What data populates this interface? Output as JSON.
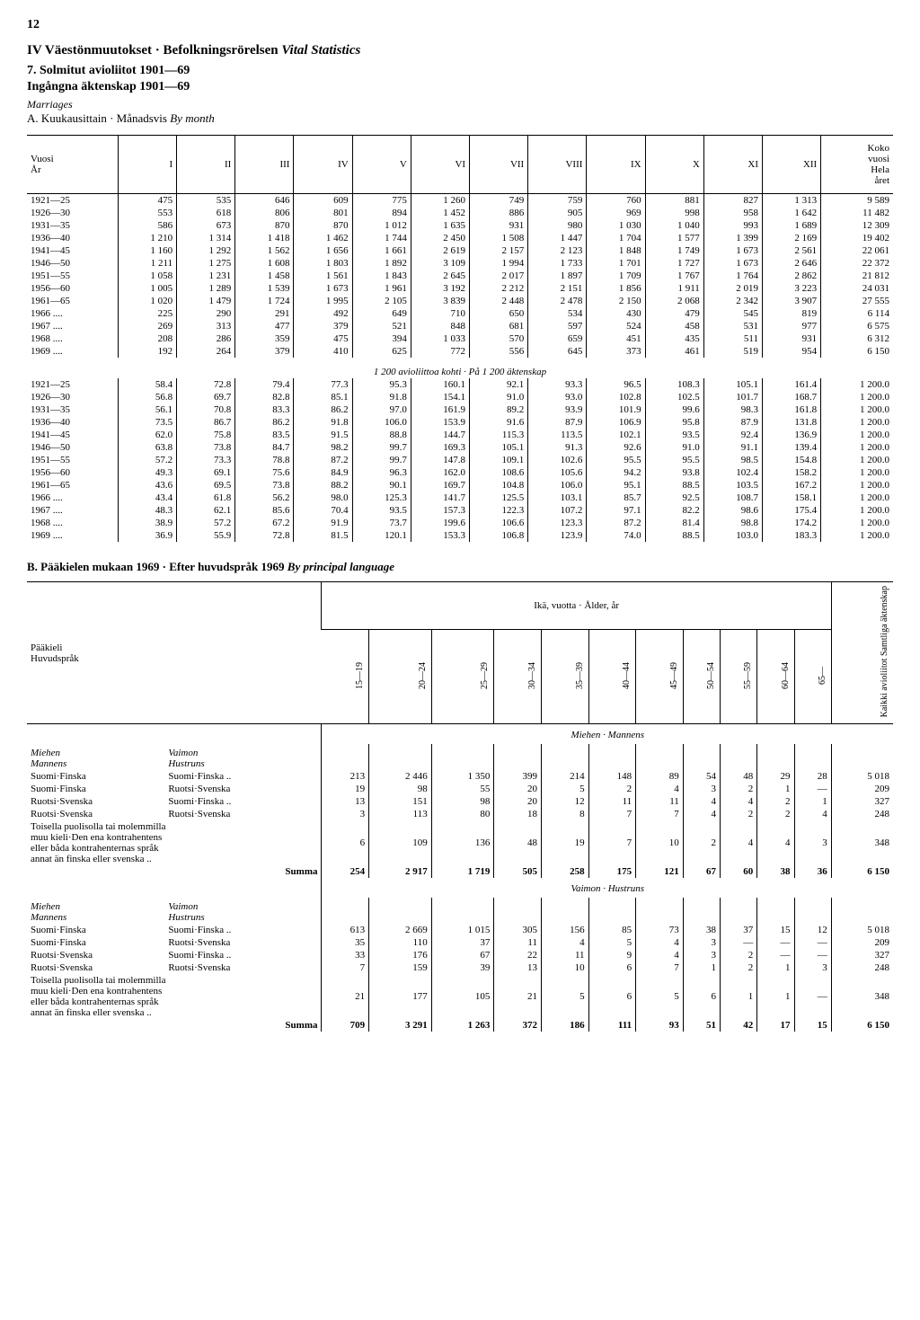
{
  "page_number": "12",
  "heading": "IV Väestönmuutokset · Befolkningsrörelsen",
  "heading_italic": "Vital Statistics",
  "subheading1": "7. Solmitut avioliitot 1901—69",
  "subheading2": "Ingångna äktenskap 1901—69",
  "sub_italic": "Marriages",
  "note_a": "A. Kuukausittain · Månadsvis",
  "note_a_italic": "By month",
  "tableA": {
    "head": {
      "year": "Vuosi\nÅr",
      "cols": [
        "I",
        "II",
        "III",
        "IV",
        "V",
        "VI",
        "VII",
        "VIII",
        "IX",
        "X",
        "XI",
        "XII"
      ],
      "total": "Koko\nvuosi\nHela\nåret"
    },
    "rows_abs": [
      [
        "1921—25",
        "475",
        "535",
        "646",
        "609",
        "775",
        "1 260",
        "749",
        "759",
        "760",
        "881",
        "827",
        "1 313",
        "9 589"
      ],
      [
        "1926—30",
        "553",
        "618",
        "806",
        "801",
        "894",
        "1 452",
        "886",
        "905",
        "969",
        "998",
        "958",
        "1 642",
        "11 482"
      ],
      [
        "1931—35",
        "586",
        "673",
        "870",
        "870",
        "1 012",
        "1 635",
        "931",
        "980",
        "1 030",
        "1 040",
        "993",
        "1 689",
        "12 309"
      ],
      [
        "1936—40",
        "1 210",
        "1 314",
        "1 418",
        "1 462",
        "1 744",
        "2 450",
        "1 508",
        "1 447",
        "1 704",
        "1 577",
        "1 399",
        "2 169",
        "19 402"
      ],
      [
        "1941—45",
        "1 160",
        "1 292",
        "1 562",
        "1 656",
        "1 661",
        "2 619",
        "2 157",
        "2 123",
        "1 848",
        "1 749",
        "1 673",
        "2 561",
        "22 061"
      ],
      [
        "1946—50",
        "1 211",
        "1 275",
        "1 608",
        "1 803",
        "1 892",
        "3 109",
        "1 994",
        "1 733",
        "1 701",
        "1 727",
        "1 673",
        "2 646",
        "22 372"
      ],
      [
        "1951—55",
        "1 058",
        "1 231",
        "1 458",
        "1 561",
        "1 843",
        "2 645",
        "2 017",
        "1 897",
        "1 709",
        "1 767",
        "1 764",
        "2 862",
        "21 812"
      ],
      [
        "1956—60",
        "1 005",
        "1 289",
        "1 539",
        "1 673",
        "1 961",
        "3 192",
        "2 212",
        "2 151",
        "1 856",
        "1 911",
        "2 019",
        "3 223",
        "24 031"
      ],
      [
        "1961—65",
        "1 020",
        "1 479",
        "1 724",
        "1 995",
        "2 105",
        "3 839",
        "2 448",
        "2 478",
        "2 150",
        "2 068",
        "2 342",
        "3 907",
        "27 555"
      ],
      [
        "1966 ....",
        "225",
        "290",
        "291",
        "492",
        "649",
        "710",
        "650",
        "534",
        "430",
        "479",
        "545",
        "819",
        "6 114"
      ],
      [
        "1967 ....",
        "269",
        "313",
        "477",
        "379",
        "521",
        "848",
        "681",
        "597",
        "524",
        "458",
        "531",
        "977",
        "6 575"
      ],
      [
        "1968 ....",
        "208",
        "286",
        "359",
        "475",
        "394",
        "1 033",
        "570",
        "659",
        "451",
        "435",
        "511",
        "931",
        "6 312"
      ],
      [
        "1969 ....",
        "192",
        "264",
        "379",
        "410",
        "625",
        "772",
        "556",
        "645",
        "373",
        "461",
        "519",
        "954",
        "6 150"
      ]
    ],
    "mid_caption": "1 200 avioliittoa kohti · På 1 200 äktenskap",
    "rows_rel": [
      [
        "1921—25",
        "58.4",
        "72.8",
        "79.4",
        "77.3",
        "95.3",
        "160.1",
        "92.1",
        "93.3",
        "96.5",
        "108.3",
        "105.1",
        "161.4",
        "1 200.0"
      ],
      [
        "1926—30",
        "56.8",
        "69.7",
        "82.8",
        "85.1",
        "91.8",
        "154.1",
        "91.0",
        "93.0",
        "102.8",
        "102.5",
        "101.7",
        "168.7",
        "1 200.0"
      ],
      [
        "1931—35",
        "56.1",
        "70.8",
        "83.3",
        "86.2",
        "97.0",
        "161.9",
        "89.2",
        "93.9",
        "101.9",
        "99.6",
        "98.3",
        "161.8",
        "1 200.0"
      ],
      [
        "1936—40",
        "73.5",
        "86.7",
        "86.2",
        "91.8",
        "106.0",
        "153.9",
        "91.6",
        "87.9",
        "106.9",
        "95.8",
        "87.9",
        "131.8",
        "1 200.0"
      ],
      [
        "1941—45",
        "62.0",
        "75.8",
        "83.5",
        "91.5",
        "88.8",
        "144.7",
        "115.3",
        "113.5",
        "102.1",
        "93.5",
        "92.4",
        "136.9",
        "1 200.0"
      ],
      [
        "1946—50",
        "63.8",
        "73.8",
        "84.7",
        "98.2",
        "99.7",
        "169.3",
        "105.1",
        "91.3",
        "92.6",
        "91.0",
        "91.1",
        "139.4",
        "1 200.0"
      ],
      [
        "1951—55",
        "57.2",
        "73.3",
        "78.8",
        "87.2",
        "99.7",
        "147.8",
        "109.1",
        "102.6",
        "95.5",
        "95.5",
        "98.5",
        "154.8",
        "1 200.0"
      ],
      [
        "1956—60",
        "49.3",
        "69.1",
        "75.6",
        "84.9",
        "96.3",
        "162.0",
        "108.6",
        "105.6",
        "94.2",
        "93.8",
        "102.4",
        "158.2",
        "1 200.0"
      ],
      [
        "1961—65",
        "43.6",
        "69.5",
        "73.8",
        "88.2",
        "90.1",
        "169.7",
        "104.8",
        "106.0",
        "95.1",
        "88.5",
        "103.5",
        "167.2",
        "1 200.0"
      ],
      [
        "1966 ....",
        "43.4",
        "61.8",
        "56.2",
        "98.0",
        "125.3",
        "141.7",
        "125.5",
        "103.1",
        "85.7",
        "92.5",
        "108.7",
        "158.1",
        "1 200.0"
      ],
      [
        "1967 ....",
        "48.3",
        "62.1",
        "85.6",
        "70.4",
        "93.5",
        "157.3",
        "122.3",
        "107.2",
        "97.1",
        "82.2",
        "98.6",
        "175.4",
        "1 200.0"
      ],
      [
        "1968 ....",
        "38.9",
        "57.2",
        "67.2",
        "91.9",
        "73.7",
        "199.6",
        "106.6",
        "123.3",
        "87.2",
        "81.4",
        "98.8",
        "174.2",
        "1 200.0"
      ],
      [
        "1969 ....",
        "36.9",
        "55.9",
        "72.8",
        "81.5",
        "120.1",
        "153.3",
        "106.8",
        "123.9",
        "74.0",
        "88.5",
        "103.0",
        "183.3",
        "1 200.0"
      ]
    ]
  },
  "section_b": "B. Pääkielen mukaan 1969 · Efter huvudspråk 1969",
  "section_b_italic": "By principal language",
  "tableB": {
    "row_label": "Pääkieli\nHuvudspråk",
    "age_head": "Ikä, vuotta · Ålder, år",
    "age_cols": [
      "15—19",
      "20—24",
      "25—29",
      "30—34",
      "35—39",
      "40—44",
      "45—49",
      "50—54",
      "55—59",
      "60—64",
      "65—"
    ],
    "total_col": "Kaikki\navioliitot\nSamtliga\näktenskap",
    "sub_miehen": "Miehen · Mannens",
    "sub_vaimon": "Vaimon · Hustruns",
    "group1_l": "Miehen\nMannens",
    "group1_r": "Vaimon\nHustruns",
    "rows_m": [
      [
        "Suomi·Finska",
        "Suomi·Finska ..",
        "213",
        "2 446",
        "1 350",
        "399",
        "214",
        "148",
        "89",
        "54",
        "48",
        "29",
        "28",
        "5 018"
      ],
      [
        "Suomi·Finska",
        "Ruotsi·Svenska",
        "19",
        "98",
        "55",
        "20",
        "5",
        "2",
        "4",
        "3",
        "2",
        "1",
        "—",
        "209"
      ],
      [
        "Ruotsi·Svenska",
        "Suomi·Finska ..",
        "13",
        "151",
        "98",
        "20",
        "12",
        "11",
        "11",
        "4",
        "4",
        "2",
        "1",
        "327"
      ],
      [
        "Ruotsi·Svenska",
        "Ruotsi·Svenska",
        "3",
        "113",
        "80",
        "18",
        "8",
        "7",
        "7",
        "4",
        "2",
        "2",
        "4",
        "248"
      ]
    ],
    "other_lang": "Toisella puolisolla tai molemmilla\nmuu kieli·Den ena kontrahentens\neller båda kontrahenternas språk\nannat än finska eller svenska   ..",
    "other_m": [
      "6",
      "109",
      "136",
      "48",
      "19",
      "7",
      "10",
      "2",
      "4",
      "4",
      "3",
      "348"
    ],
    "summa": "Summa",
    "summa_m": [
      "254",
      "2 917",
      "1 719",
      "505",
      "258",
      "175",
      "121",
      "67",
      "60",
      "38",
      "36",
      "6 150"
    ],
    "rows_v": [
      [
        "Suomi·Finska",
        "Suomi·Finska ..",
        "613",
        "2 669",
        "1 015",
        "305",
        "156",
        "85",
        "73",
        "38",
        "37",
        "15",
        "12",
        "5 018"
      ],
      [
        "Suomi·Finska",
        "Ruotsi·Svenska",
        "35",
        "110",
        "37",
        "11",
        "4",
        "5",
        "4",
        "3",
        "—",
        "—",
        "—",
        "209"
      ],
      [
        "Ruotsi·Svenska",
        "Suomi·Finska ..",
        "33",
        "176",
        "67",
        "22",
        "11",
        "9",
        "4",
        "3",
        "2",
        "—",
        "—",
        "327"
      ],
      [
        "Ruotsi·Svenska",
        "Ruotsi·Svenska",
        "7",
        "159",
        "39",
        "13",
        "10",
        "6",
        "7",
        "1",
        "2",
        "1",
        "3",
        "248"
      ]
    ],
    "other_v": [
      "21",
      "177",
      "105",
      "21",
      "5",
      "6",
      "5",
      "6",
      "1",
      "1",
      "—",
      "348"
    ],
    "summa_v": [
      "709",
      "3 291",
      "1 263",
      "372",
      "186",
      "111",
      "93",
      "51",
      "42",
      "17",
      "15",
      "6 150"
    ]
  }
}
